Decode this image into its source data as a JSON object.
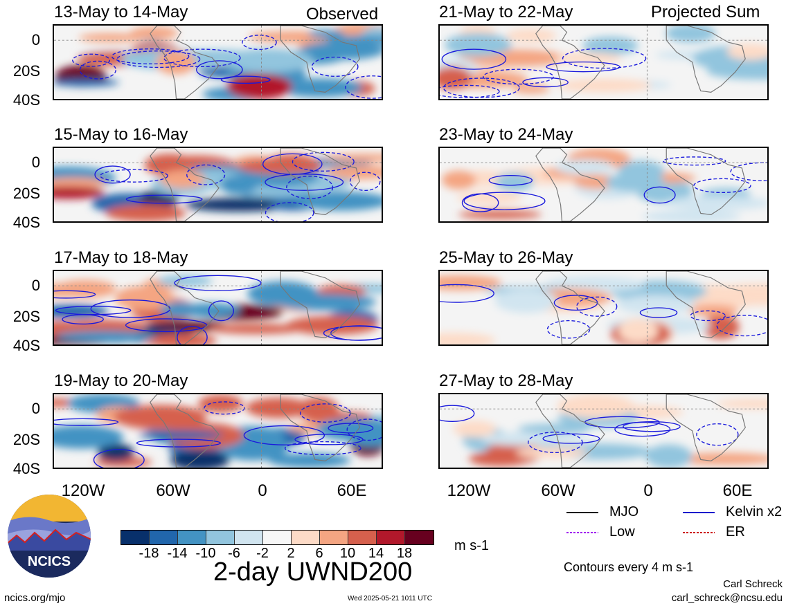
{
  "panels": [
    {
      "title": "13-May to 14-May",
      "corner": "Observed"
    },
    {
      "title": "15-May to 16-May",
      "corner": ""
    },
    {
      "title": "17-May to 18-May",
      "corner": ""
    },
    {
      "title": "19-May to 20-May",
      "corner": ""
    },
    {
      "title": "21-May to 22-May",
      "corner": "Projected Sum"
    },
    {
      "title": "23-May to 24-May",
      "corner": ""
    },
    {
      "title": "25-May to 26-May",
      "corner": ""
    },
    {
      "title": "27-May to 28-May",
      "corner": ""
    }
  ],
  "lat_labels": [
    "0",
    "20S",
    "40S"
  ],
  "lon_labels": [
    "120W",
    "60W",
    "0",
    "60E"
  ],
  "colorbar": {
    "ticks": [
      "-18",
      "-14",
      "-10",
      "-6",
      "-2",
      "2",
      "6",
      "10",
      "14",
      "18"
    ],
    "colors": [
      "#08306b",
      "#2166ac",
      "#4393c3",
      "#92c5de",
      "#d1e5f0",
      "#f7f7f7",
      "#fddbc7",
      "#f4a582",
      "#d6604d",
      "#b2182b",
      "#67001f"
    ],
    "units": "m s-1"
  },
  "main_title": "2-day UWND200",
  "legend": [
    {
      "label": "MJO",
      "color": "#000000"
    },
    {
      "label": "Kelvin x2",
      "color": "#0000cc"
    },
    {
      "label": "Low",
      "color": "#a020f0"
    },
    {
      "label": "ER",
      "color": "#cc0000"
    }
  ],
  "contour_note": "Contours every 4 m s-1",
  "logo_text": "NCICS",
  "footer": {
    "url": "ncics.org/mjo",
    "timestamp": "Wed 2025-05-21 1011 UTC",
    "author": "Carl Schreck",
    "email": "carl_schreck@ncsu.edu"
  }
}
